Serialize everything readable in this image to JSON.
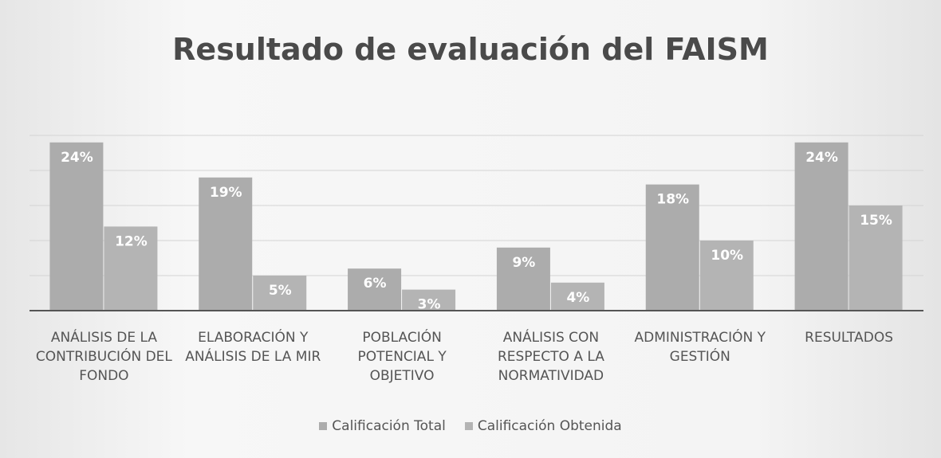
{
  "chart_data": {
    "type": "bar",
    "title": "Resultado de evaluación del FAISM",
    "categories": [
      "ANÁLISIS DE LA CONTRIBUCIÓN DEL FONDO",
      "ELABORACIÓN Y ANÁLISIS DE LA MIR",
      "POBLACIÓN POTENCIAL Y OBJETIVO",
      "ANÁLISIS CON RESPECTO A LA NORMATIVIDAD",
      "ADMINISTRACIÓN Y GESTIÓN",
      "RESULTADOS"
    ],
    "series": [
      {
        "name": "Calificación Total",
        "color": "#acacac",
        "values": [
          24,
          19,
          6,
          9,
          18,
          24
        ],
        "value_labels": [
          "24%",
          "19%",
          "6%",
          "9%",
          "18%",
          "24%"
        ]
      },
      {
        "name": "Calificación Obtenida",
        "color": "#b4b4b4",
        "values": [
          12,
          5,
          3,
          4,
          10,
          15
        ],
        "value_labels": [
          "12%",
          "5%",
          "3%",
          "4%",
          "10%",
          "15%"
        ]
      }
    ],
    "ylim": [
      0,
      25
    ],
    "yticks": [
      0,
      5,
      10,
      15,
      20,
      25
    ],
    "grid": true,
    "legend": "bottom"
  }
}
